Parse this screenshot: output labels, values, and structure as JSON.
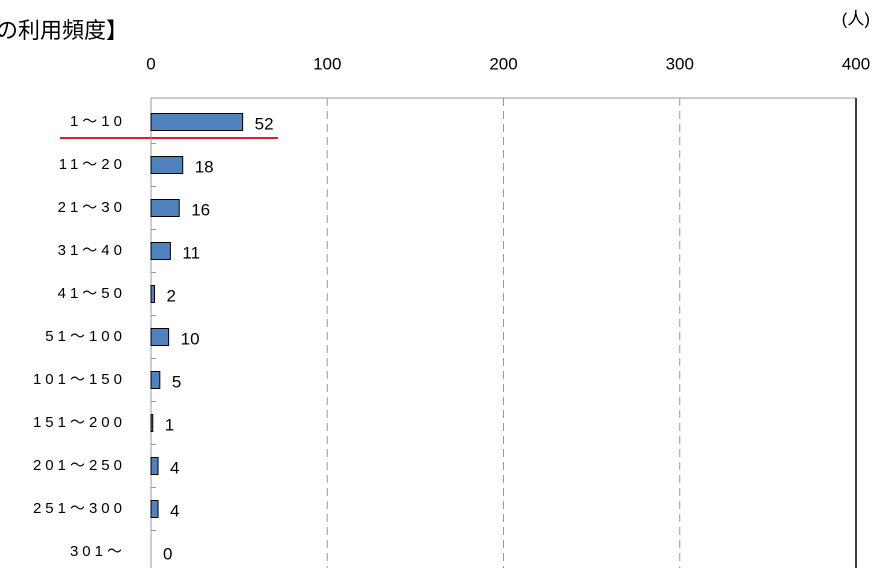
{
  "chart_data": {
    "type": "bar",
    "orientation": "horizontal",
    "title": "の利用頻度】",
    "unit_label": "(人)",
    "categories": [
      "1～10",
      "11～20",
      "21～30",
      "31～40",
      "41～50",
      "51～100",
      "101～150",
      "151～200",
      "201～250",
      "251～300",
      "301～"
    ],
    "values": [
      52,
      18,
      16,
      11,
      2,
      10,
      5,
      1,
      4,
      4,
      0
    ],
    "color": "#4f81bd",
    "xlim": [
      0,
      400
    ],
    "xticks": [
      0,
      100,
      200,
      300,
      400
    ],
    "grid": true
  }
}
